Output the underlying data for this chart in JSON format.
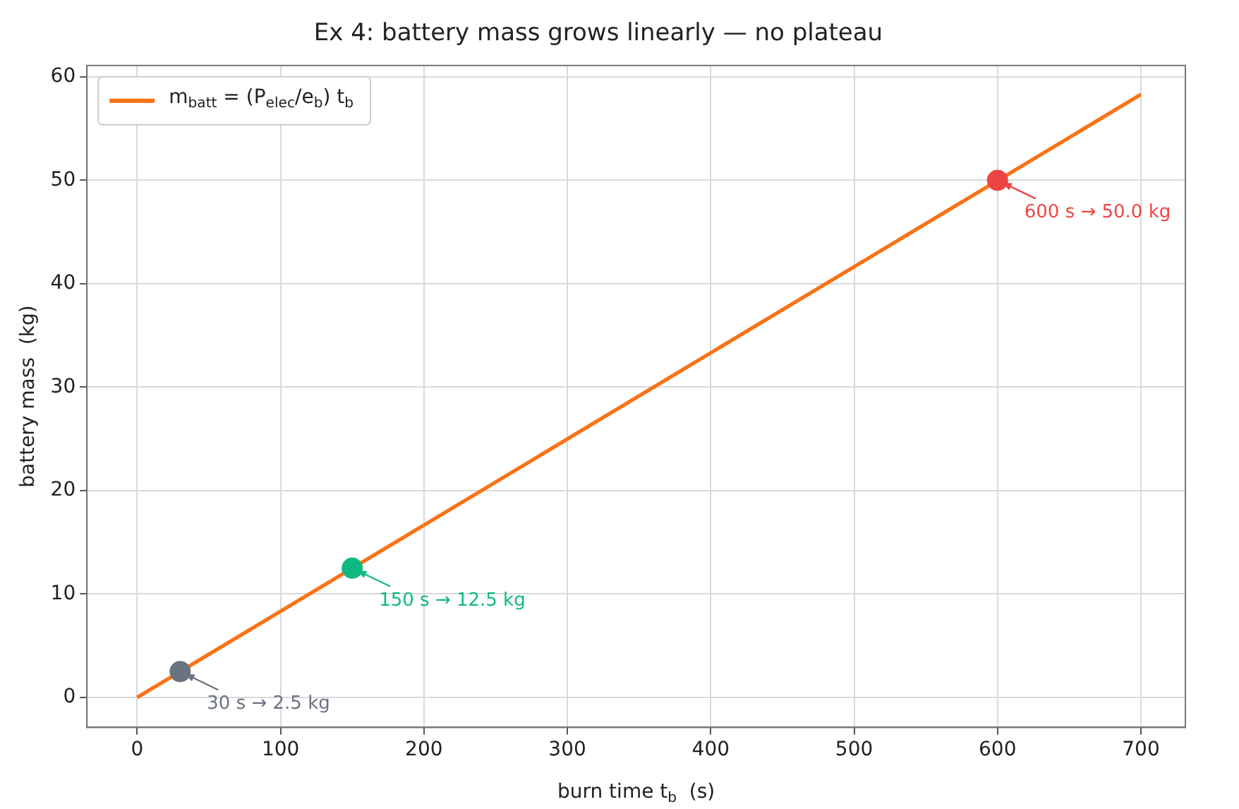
{
  "chart_data": {
    "type": "line",
    "title": "Ex 4: battery mass grows linearly — no plateau",
    "xlabel": "burn time t$_{b}$  (s)",
    "ylabel": "battery mass  (kg)",
    "series": [
      {
        "name": "m$_{batt}$ = (P$_{elec}$/e$_{b}$) t$_{b}$",
        "color": "#f97316",
        "x": [
          0,
          700
        ],
        "values": [
          0,
          58.3
        ]
      },
      {
        "type": "scatter",
        "colors": [
          "#6b7280",
          "#10b981",
          "#ef4444"
        ],
        "x": [
          30,
          150,
          600
        ],
        "values": [
          2.5,
          12.5,
          50
        ]
      }
    ],
    "annotations": [
      {
        "text": "30 s → 2.5 kg",
        "x": 30,
        "y": 2.5
      },
      {
        "text": "150 s → 12.5 kg",
        "x": 150,
        "y": 12.5
      },
      {
        "text": "600 s → 50.0 kg",
        "x": 600,
        "y": 50
      }
    ],
    "xlim": [
      -35,
      731
    ],
    "xticks": [
      0,
      100,
      200,
      300,
      400,
      500,
      600,
      700
    ],
    "ylim": [
      -2.9,
      61.1
    ],
    "yticks": [
      0,
      10,
      20,
      30,
      40,
      50,
      60
    ],
    "grid": true,
    "legend": "top left"
  }
}
